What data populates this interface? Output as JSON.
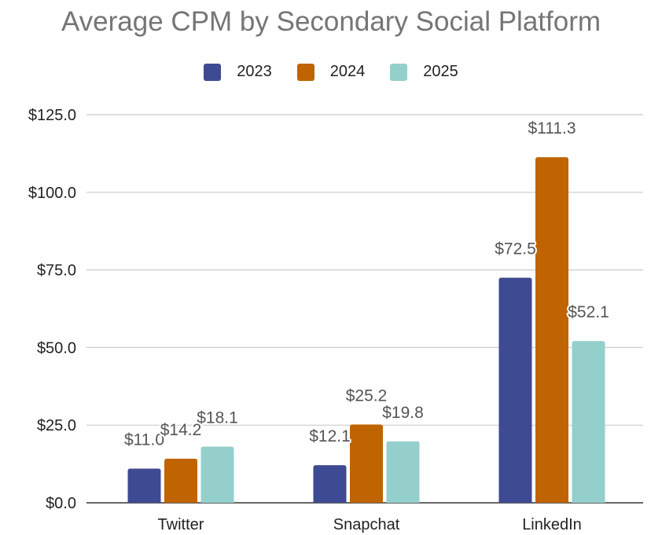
{
  "chart_data": {
    "type": "bar",
    "title": "Average CPM by Secondary Social Platform",
    "xlabel": "",
    "ylabel": "",
    "categories": [
      "Twitter",
      "Snapchat",
      "LinkedIn"
    ],
    "series": [
      {
        "name": "2023",
        "color": "#3e4a91",
        "values": [
          11.0,
          12.1,
          72.5
        ],
        "labels": [
          "$11.0",
          "$12.1",
          "$72.5"
        ]
      },
      {
        "name": "2024",
        "color": "#bf6400",
        "values": [
          14.2,
          25.2,
          111.3
        ],
        "labels": [
          "$14.2",
          "$25.2",
          "$111.3"
        ]
      },
      {
        "name": "2025",
        "color": "#94cfcc",
        "values": [
          18.1,
          19.8,
          52.1
        ],
        "labels": [
          "$18.1",
          "$19.8",
          "$52.1"
        ]
      }
    ],
    "ylim": [
      0,
      125
    ],
    "yticks": [
      0,
      25,
      50,
      75,
      100,
      125
    ],
    "ytick_labels": [
      "$0.0",
      "$25.0",
      "$50.0",
      "$75.0",
      "$100.0",
      "$125.0"
    ],
    "grid": true,
    "legend_position": "top-center"
  }
}
